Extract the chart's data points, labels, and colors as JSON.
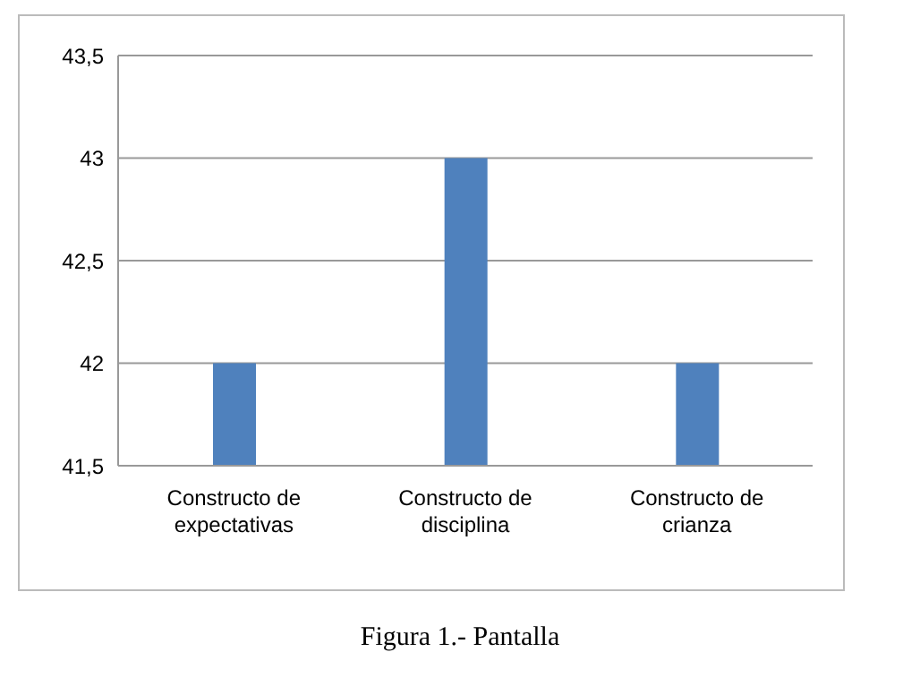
{
  "chart_data": {
    "type": "bar",
    "categories": [
      "Constructo de expectativas",
      "Constructo de disciplina",
      "Constructo de crianza"
    ],
    "values": [
      42,
      43,
      42
    ],
    "color": "#4f81bd",
    "ylim": [
      41.5,
      43.5
    ],
    "yticks": [
      {
        "value": 41.5,
        "label": "41,5"
      },
      42,
      {
        "value": 42.5,
        "label": "42,5"
      },
      43,
      {
        "value": 43.5,
        "label": "43,5"
      }
    ],
    "grid": "y",
    "annotations": [
      "Figura 1.- Pantalla"
    ]
  }
}
